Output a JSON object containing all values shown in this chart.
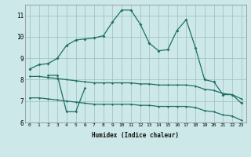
{
  "title": "",
  "xlabel": "Humidex (Indice chaleur)",
  "x": [
    0,
    1,
    2,
    3,
    4,
    5,
    6,
    7,
    8,
    9,
    10,
    11,
    12,
    13,
    14,
    15,
    16,
    17,
    18,
    19,
    20,
    21,
    22,
    23
  ],
  "line_main": [
    8.5,
    8.7,
    8.75,
    9.0,
    9.6,
    9.85,
    9.9,
    9.95,
    10.05,
    10.7,
    11.25,
    11.25,
    10.6,
    9.7,
    9.35,
    9.4,
    10.3,
    10.8,
    9.5,
    8.0,
    7.9,
    7.3,
    7.3,
    6.9
  ],
  "line_flat_upper": [
    8.15,
    8.15,
    8.1,
    8.05,
    8.0,
    7.95,
    7.9,
    7.85,
    7.85,
    7.85,
    7.85,
    7.85,
    7.8,
    7.8,
    7.75,
    7.75,
    7.75,
    7.75,
    7.7,
    7.55,
    7.5,
    7.35,
    7.3,
    7.1
  ],
  "line_flat_lower": [
    7.15,
    7.15,
    7.1,
    7.05,
    7.0,
    6.95,
    6.9,
    6.85,
    6.85,
    6.85,
    6.85,
    6.85,
    6.8,
    6.8,
    6.75,
    6.75,
    6.75,
    6.75,
    6.7,
    6.55,
    6.5,
    6.35,
    6.3,
    6.1
  ],
  "line_dip": [
    null,
    null,
    8.2,
    8.2,
    6.5,
    6.5,
    7.6,
    null,
    null,
    null,
    null,
    null,
    null,
    null,
    null,
    null,
    null,
    null,
    null,
    null,
    null,
    null,
    null,
    null
  ],
  "color": "#1e6e64",
  "bg_color": "#cce8e8",
  "grid_color": "#9dbdbd",
  "ylim": [
    6,
    11.5
  ],
  "xlim": [
    -0.5,
    23.5
  ]
}
